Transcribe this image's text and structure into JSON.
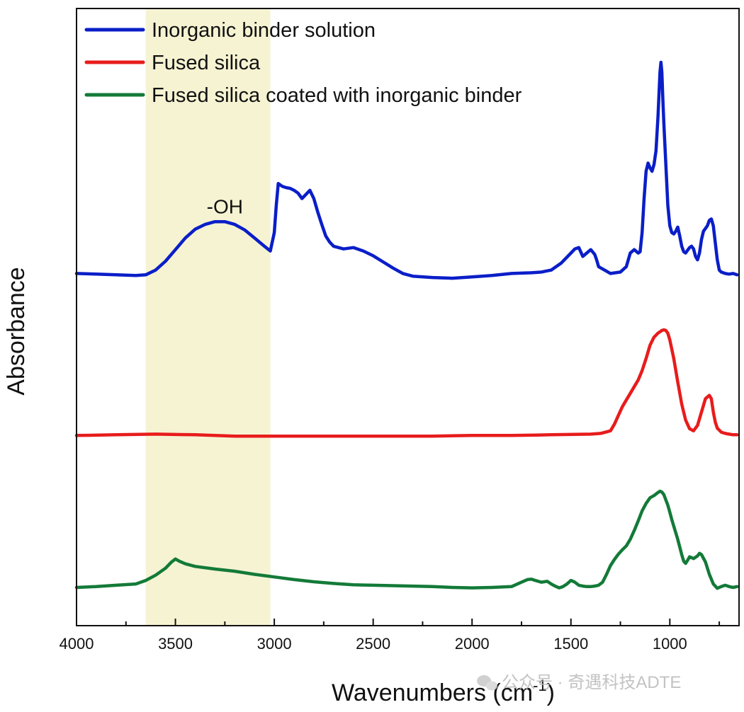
{
  "chart_data": {
    "type": "line",
    "xlabel": "Wavenumbers (cm",
    "xlabel_sup": "-1",
    "xlabel_close": ")",
    "ylabel": "Absorbance",
    "xlim": [
      4000,
      650
    ],
    "x_reversed": true,
    "y_ticks_shown": false,
    "grid": false,
    "legend_position": "top-left",
    "x_ticks": [
      4000,
      3500,
      3000,
      2500,
      2000,
      1500,
      1000
    ],
    "highlight_band": {
      "x_from": 3650,
      "x_to": 3020,
      "color": "#f6f3d2"
    },
    "annotations": [
      {
        "text": "-OH",
        "x": 3250,
        "y": 3.88
      }
    ],
    "series": [
      {
        "name": "Inorganic binder solution",
        "color": "#0a1ec8",
        "x": [
          4000,
          3900,
          3800,
          3700,
          3650,
          3600,
          3550,
          3500,
          3450,
          3400,
          3350,
          3300,
          3250,
          3200,
          3150,
          3100,
          3050,
          3020,
          3000,
          2990,
          2980,
          2960,
          2940,
          2920,
          2900,
          2880,
          2860,
          2840,
          2820,
          2800,
          2780,
          2760,
          2740,
          2720,
          2700,
          2650,
          2600,
          2550,
          2500,
          2450,
          2400,
          2350,
          2300,
          2200,
          2100,
          2000,
          1900,
          1800,
          1700,
          1650,
          1600,
          1550,
          1500,
          1480,
          1460,
          1440,
          1420,
          1400,
          1380,
          1370,
          1360,
          1300,
          1250,
          1220,
          1200,
          1180,
          1160,
          1150,
          1140,
          1130,
          1120,
          1110,
          1100,
          1090,
          1080,
          1070,
          1060,
          1050,
          1045,
          1040,
          1035,
          1030,
          1020,
          1010,
          1000,
          990,
          980,
          970,
          960,
          950,
          940,
          930,
          920,
          910,
          900,
          890,
          880,
          870,
          860,
          850,
          840,
          830,
          820,
          810,
          800,
          790,
          780,
          770,
          760,
          750,
          740,
          720,
          700,
          680,
          660
        ],
        "y": [
          3.0,
          2.99,
          2.98,
          2.97,
          2.98,
          3.05,
          3.18,
          3.35,
          3.52,
          3.65,
          3.72,
          3.76,
          3.76,
          3.72,
          3.64,
          3.52,
          3.4,
          3.33,
          3.6,
          4.0,
          4.32,
          4.28,
          4.26,
          4.25,
          4.22,
          4.18,
          4.1,
          4.16,
          4.22,
          4.1,
          3.9,
          3.72,
          3.55,
          3.46,
          3.4,
          3.36,
          3.38,
          3.33,
          3.26,
          3.17,
          3.08,
          3.0,
          2.96,
          2.94,
          2.93,
          2.95,
          2.97,
          3.0,
          3.01,
          3.02,
          3.05,
          3.15,
          3.3,
          3.36,
          3.38,
          3.25,
          3.3,
          3.35,
          3.28,
          3.2,
          3.1,
          3.0,
          3.02,
          3.1,
          3.3,
          3.35,
          3.3,
          3.32,
          3.6,
          4.1,
          4.5,
          4.62,
          4.55,
          4.5,
          4.6,
          4.8,
          5.3,
          5.95,
          6.1,
          5.95,
          5.55,
          5.2,
          4.6,
          4.0,
          3.7,
          3.6,
          3.58,
          3.62,
          3.68,
          3.55,
          3.4,
          3.32,
          3.3,
          3.34,
          3.38,
          3.4,
          3.36,
          3.25,
          3.2,
          3.3,
          3.5,
          3.62,
          3.66,
          3.7,
          3.78,
          3.8,
          3.7,
          3.45,
          3.2,
          3.05,
          3.02,
          3.0,
          2.99,
          3.0,
          2.98
        ]
      },
      {
        "name": "Fused silica",
        "color": "#e81c1c",
        "x": [
          4000,
          3800,
          3600,
          3400,
          3200,
          3000,
          2800,
          2600,
          2400,
          2200,
          2000,
          1800,
          1600,
          1400,
          1350,
          1300,
          1280,
          1260,
          1240,
          1220,
          1200,
          1180,
          1160,
          1140,
          1120,
          1100,
          1080,
          1060,
          1050,
          1040,
          1030,
          1020,
          1010,
          1000,
          980,
          960,
          940,
          920,
          900,
          880,
          860,
          840,
          820,
          800,
          790,
          780,
          770,
          760,
          740,
          720,
          700,
          680,
          660
        ],
        "y": [
          0.85,
          0.86,
          0.87,
          0.86,
          0.84,
          0.84,
          0.84,
          0.84,
          0.84,
          0.84,
          0.85,
          0.85,
          0.86,
          0.87,
          0.88,
          0.92,
          1.02,
          1.15,
          1.28,
          1.38,
          1.48,
          1.58,
          1.68,
          1.82,
          2.0,
          2.2,
          2.32,
          2.38,
          2.4,
          2.42,
          2.43,
          2.42,
          2.38,
          2.28,
          2.0,
          1.65,
          1.32,
          1.08,
          0.95,
          0.92,
          1.0,
          1.2,
          1.4,
          1.45,
          1.4,
          1.2,
          1.05,
          0.96,
          0.9,
          0.88,
          0.87,
          0.86,
          0.86
        ]
      },
      {
        "name": "Fused silica coated with inorganic binder",
        "color": "#137a38",
        "x": [
          4000,
          3900,
          3800,
          3700,
          3650,
          3600,
          3550,
          3520,
          3500,
          3480,
          3450,
          3400,
          3300,
          3200,
          3100,
          3000,
          2900,
          2800,
          2700,
          2600,
          2500,
          2400,
          2300,
          2200,
          2100,
          2000,
          1900,
          1800,
          1750,
          1720,
          1700,
          1680,
          1650,
          1620,
          1600,
          1580,
          1560,
          1540,
          1520,
          1500,
          1480,
          1460,
          1440,
          1420,
          1400,
          1380,
          1360,
          1340,
          1320,
          1300,
          1280,
          1260,
          1240,
          1220,
          1200,
          1180,
          1160,
          1140,
          1120,
          1100,
          1080,
          1060,
          1050,
          1040,
          1030,
          1020,
          1010,
          1000,
          990,
          980,
          960,
          940,
          930,
          920,
          910,
          900,
          880,
          860,
          850,
          840,
          820,
          800,
          780,
          760,
          740,
          720,
          700,
          680,
          660
        ],
        "y": [
          0.0,
          0.02,
          0.05,
          0.08,
          0.16,
          0.28,
          0.44,
          0.58,
          0.65,
          0.6,
          0.54,
          0.48,
          0.42,
          0.37,
          0.3,
          0.24,
          0.18,
          0.13,
          0.09,
          0.06,
          0.05,
          0.04,
          0.03,
          0.02,
          0.0,
          -0.01,
          0.0,
          0.02,
          0.12,
          0.18,
          0.19,
          0.16,
          0.12,
          0.14,
          0.08,
          0.03,
          -0.01,
          0.02,
          0.08,
          0.16,
          0.12,
          0.05,
          0.03,
          0.02,
          0.02,
          0.03,
          0.05,
          0.12,
          0.3,
          0.5,
          0.64,
          0.76,
          0.86,
          0.95,
          1.1,
          1.3,
          1.52,
          1.75,
          1.92,
          2.05,
          2.1,
          2.17,
          2.2,
          2.18,
          2.12,
          2.0,
          1.88,
          1.72,
          1.55,
          1.4,
          1.1,
          0.75,
          0.6,
          0.55,
          0.62,
          0.7,
          0.66,
          0.72,
          0.78,
          0.75,
          0.58,
          0.3,
          0.08,
          -0.02,
          0.02,
          0.05,
          0.02,
          0.0,
          0.02
        ]
      }
    ]
  },
  "watermark": "公众号 · 奇遇科技ADTE"
}
